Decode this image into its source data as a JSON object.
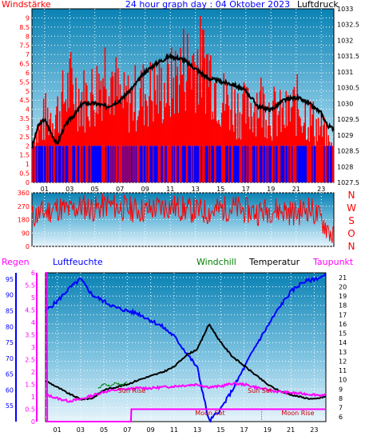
{
  "chart_data": [
    {
      "type": "line",
      "panel": "wind-pressure",
      "title": "24 hour graph day : 04 Oktober 2023",
      "left_label": "Windstärke",
      "right_label": "Luftdruck",
      "ylim_left": [
        0,
        9.5
      ],
      "ylim_right": [
        1027.5,
        1033
      ],
      "y_left_ticks": [
        "0",
        "0.5",
        "1",
        "1.5",
        "2",
        "2.5",
        "3",
        "3.5",
        "4",
        "4.5",
        "5",
        "5.5",
        "6",
        "6.5",
        "7",
        "7.5",
        "8",
        "8.5",
        "9"
      ],
      "y_right_ticks": [
        "1027.5",
        "1028",
        "1028.5",
        "1029",
        "1029.5",
        "1030",
        "1030.5",
        "1031",
        "1031.5",
        "1032",
        "1032.5",
        "1033"
      ],
      "x_ticks": [
        "01",
        "03",
        "05",
        "07",
        "09",
        "11",
        "13",
        "15",
        "17",
        "19",
        "21",
        "23"
      ],
      "series": [
        {
          "name": "Luftdruck",
          "color": "#000000",
          "x": [
            0,
            0.5,
            1,
            1.5,
            2,
            2.5,
            3,
            3.5,
            4,
            5,
            6,
            7,
            8,
            9,
            10,
            11,
            12,
            13,
            14,
            15,
            16,
            17,
            18,
            19,
            20,
            21,
            22,
            23,
            23.5,
            24
          ],
          "y": [
            1028.6,
            1029.3,
            1029.5,
            1029.1,
            1028.7,
            1029.2,
            1029.5,
            1029.7,
            1030.0,
            1030.0,
            1029.9,
            1030.1,
            1030.5,
            1031.0,
            1031.3,
            1031.5,
            1031.4,
            1031.1,
            1030.8,
            1030.7,
            1030.6,
            1030.4,
            1029.9,
            1029.8,
            1030.1,
            1030.2,
            1030.0,
            1029.7,
            1029.3,
            1029.2
          ]
        },
        {
          "name": "Wind",
          "color": "#ff0000",
          "x": [
            0,
            1,
            2,
            3,
            4,
            5,
            6,
            7,
            8,
            9,
            10,
            11,
            12,
            13,
            14,
            15,
            16,
            17,
            18,
            19,
            20,
            21,
            22,
            23,
            24
          ],
          "y": [
            2,
            3.5,
            4,
            5.5,
            5,
            4.5,
            6,
            4.5,
            6,
            7,
            5,
            5.5,
            6.5,
            9,
            6,
            5.5,
            4.5,
            3.5,
            4,
            4,
            3,
            3.5,
            2.5,
            2,
            2
          ]
        },
        {
          "name": "Wind gust",
          "color": "#ff0000",
          "x": [
            0,
            1,
            2,
            3,
            4,
            5,
            6,
            7,
            8,
            9,
            10,
            11,
            12,
            13,
            14,
            15,
            16,
            17,
            18,
            19,
            20,
            21,
            22,
            23,
            24
          ],
          "y": [
            3,
            5,
            5.5,
            7.5,
            6.5,
            7,
            9.5,
            6,
            6.5,
            7,
            7,
            7.5,
            9,
            9.5,
            9,
            6.5,
            6,
            5.5,
            6.5,
            5.5,
            5,
            6,
            5,
            4,
            2
          ]
        }
      ]
    },
    {
      "type": "line",
      "panel": "wind-direction",
      "y_ticks": [
        "0",
        "90",
        "180",
        "270",
        "360"
      ],
      "compass": [
        "N",
        "W",
        "S",
        "O",
        "N"
      ],
      "ylim": [
        0,
        360
      ],
      "series": [
        {
          "name": "Windrichtung",
          "color": "#ff0000",
          "x": [
            0,
            1,
            2,
            3,
            4,
            5,
            6,
            7,
            8,
            9,
            10,
            11,
            12,
            13,
            14,
            15,
            16,
            17,
            18,
            19,
            20,
            21,
            22,
            23,
            24
          ],
          "y": [
            200,
            230,
            260,
            240,
            270,
            250,
            280,
            260,
            250,
            240,
            260,
            270,
            250,
            240,
            230,
            250,
            260,
            240,
            230,
            250,
            240,
            220,
            260,
            180,
            60
          ]
        }
      ]
    },
    {
      "type": "line",
      "panel": "temperature-humidity",
      "labels": {
        "rain": "Regen",
        "humidity": "Luftfeuchte",
        "windchill": "Windchill",
        "temperature": "Temperatur",
        "dewpoint": "Taupunkt"
      },
      "ylim_rain": [
        0,
        6
      ],
      "ylim_humidity": [
        50,
        97
      ],
      "ylim_temp": [
        5.5,
        21.5
      ],
      "rain_ticks": [
        "0",
        "0.5",
        "1",
        "1.5",
        "2",
        "2.5",
        "3",
        "3.5",
        "4",
        "4.5",
        "5",
        "5.5",
        "6"
      ],
      "humidity_ticks": [
        "55",
        "60",
        "65",
        "70",
        "75",
        "80",
        "85",
        "90",
        "95"
      ],
      "temp_ticks": [
        "6",
        "7",
        "8",
        "9",
        "10",
        "11",
        "12",
        "13",
        "14",
        "15",
        "16",
        "17",
        "18",
        "19",
        "20",
        "21"
      ],
      "x_ticks": [
        "01",
        "03",
        "05",
        "07",
        "09",
        "11",
        "13",
        "15",
        "17",
        "19",
        "21",
        "23"
      ],
      "annotations": [
        "Sun Rise",
        "Sun Set",
        "Moon Set",
        "Moon Rise"
      ],
      "series": [
        {
          "name": "Temperatur",
          "color": "#000000",
          "x": [
            0,
            1,
            2,
            3,
            4,
            5,
            6,
            7,
            8,
            9,
            10,
            11,
            12,
            13,
            14,
            15,
            16,
            17,
            18,
            19,
            20,
            21,
            22,
            23,
            24
          ],
          "y": [
            9.9,
            9.2,
            8.5,
            7.9,
            8.0,
            8.9,
            9.2,
            9.5,
            10.0,
            10.4,
            10.8,
            11.4,
            12.6,
            13.3,
            16.0,
            14.0,
            12.5,
            11.5,
            10.5,
            9.5,
            8.8,
            8.4,
            8.1,
            7.9,
            8.2
          ]
        },
        {
          "name": "Luftfeuchte",
          "color": "#0000ff",
          "x": [
            0,
            1,
            2,
            3,
            4,
            5,
            6,
            7,
            8,
            9,
            10,
            11,
            12,
            13,
            14,
            15,
            16,
            17,
            18,
            19,
            20,
            21,
            22,
            23,
            24
          ],
          "y": [
            85,
            88,
            92,
            95,
            90,
            88,
            86,
            85,
            84,
            82,
            80,
            77,
            72,
            67,
            50,
            54,
            60,
            67,
            74,
            80,
            86,
            91,
            94,
            95,
            96
          ]
        },
        {
          "name": "Taupunkt",
          "color": "#ff00ff",
          "x": [
            0,
            1,
            2,
            3,
            4,
            5,
            6,
            7,
            8,
            9,
            10,
            11,
            12,
            13,
            14,
            15,
            16,
            17,
            18,
            19,
            20,
            21,
            22,
            23,
            24
          ],
          "y": [
            8.4,
            8.0,
            7.7,
            7.9,
            8.3,
            8.7,
            8.9,
            9.0,
            9.1,
            9.1,
            9.2,
            9.3,
            9.4,
            9.5,
            9.2,
            9.3,
            9.6,
            9.5,
            9.2,
            8.9,
            8.7,
            8.6,
            8.5,
            8.4,
            8.3
          ]
        },
        {
          "name": "Windchill",
          "color": "#008000",
          "x": [
            4.5,
            5,
            5.5,
            6,
            6.5,
            7
          ],
          "y": [
            9.0,
            9.6,
            9.3,
            9.7,
            9.4,
            9.8
          ]
        },
        {
          "name": "Regen",
          "color": "#ff00ff",
          "x": [
            0,
            0.1,
            0.15,
            7.3,
            7.35,
            24
          ],
          "y": [
            6,
            6,
            0,
            0,
            0.5,
            0.5
          ]
        }
      ]
    }
  ]
}
